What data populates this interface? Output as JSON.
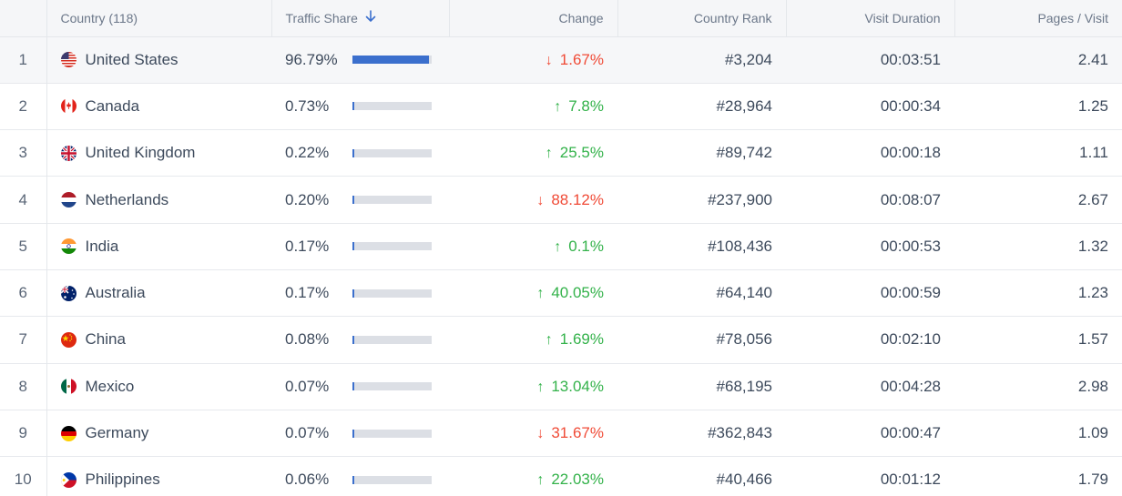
{
  "columns": {
    "country": "Country (118)",
    "traffic_share": "Traffic Share",
    "change": "Change",
    "country_rank": "Country Rank",
    "visit_duration": "Visit Duration",
    "pages_visit": "Pages / Visit"
  },
  "colors": {
    "bar_fill": "#3b6fcd",
    "bar_track": "#dcdfe5",
    "up": "#33b24a",
    "down": "#f04b37"
  },
  "rows": [
    {
      "idx": "1",
      "flag": "us-flag-icon",
      "country": "United States",
      "share": "96.79%",
      "share_fraction": 0.9679,
      "dir": "down",
      "arrow": "↓",
      "change": "1.67%",
      "rank": "#3,204",
      "duration": "00:03:51",
      "pages": "2.41"
    },
    {
      "idx": "2",
      "flag": "ca-flag-icon",
      "country": "Canada",
      "share": "0.73%",
      "share_fraction": 0.0073,
      "dir": "up",
      "arrow": "↑",
      "change": "7.8%",
      "rank": "#28,964",
      "duration": "00:00:34",
      "pages": "1.25"
    },
    {
      "idx": "3",
      "flag": "gb-flag-icon",
      "country": "United Kingdom",
      "share": "0.22%",
      "share_fraction": 0.0022,
      "dir": "up",
      "arrow": "↑",
      "change": "25.5%",
      "rank": "#89,742",
      "duration": "00:00:18",
      "pages": "1.11"
    },
    {
      "idx": "4",
      "flag": "nl-flag-icon",
      "country": "Netherlands",
      "share": "0.20%",
      "share_fraction": 0.002,
      "dir": "down",
      "arrow": "↓",
      "change": "88.12%",
      "rank": "#237,900",
      "duration": "00:08:07",
      "pages": "2.67"
    },
    {
      "idx": "5",
      "flag": "in-flag-icon",
      "country": "India",
      "share": "0.17%",
      "share_fraction": 0.0017,
      "dir": "up",
      "arrow": "↑",
      "change": "0.1%",
      "rank": "#108,436",
      "duration": "00:00:53",
      "pages": "1.32"
    },
    {
      "idx": "6",
      "flag": "au-flag-icon",
      "country": "Australia",
      "share": "0.17%",
      "share_fraction": 0.0017,
      "dir": "up",
      "arrow": "↑",
      "change": "40.05%",
      "rank": "#64,140",
      "duration": "00:00:59",
      "pages": "1.23"
    },
    {
      "idx": "7",
      "flag": "cn-flag-icon",
      "country": "China",
      "share": "0.08%",
      "share_fraction": 0.0008,
      "dir": "up",
      "arrow": "↑",
      "change": "1.69%",
      "rank": "#78,056",
      "duration": "00:02:10",
      "pages": "1.57"
    },
    {
      "idx": "8",
      "flag": "mx-flag-icon",
      "country": "Mexico",
      "share": "0.07%",
      "share_fraction": 0.0007,
      "dir": "up",
      "arrow": "↑",
      "change": "13.04%",
      "rank": "#68,195",
      "duration": "00:04:28",
      "pages": "2.98"
    },
    {
      "idx": "9",
      "flag": "de-flag-icon",
      "country": "Germany",
      "share": "0.07%",
      "share_fraction": 0.0007,
      "dir": "down",
      "arrow": "↓",
      "change": "31.67%",
      "rank": "#362,843",
      "duration": "00:00:47",
      "pages": "1.09"
    },
    {
      "idx": "10",
      "flag": "ph-flag-icon",
      "country": "Philippines",
      "share": "0.06%",
      "share_fraction": 0.0006,
      "dir": "up",
      "arrow": "↑",
      "change": "22.03%",
      "rank": "#40,466",
      "duration": "00:01:12",
      "pages": "1.79"
    }
  ]
}
